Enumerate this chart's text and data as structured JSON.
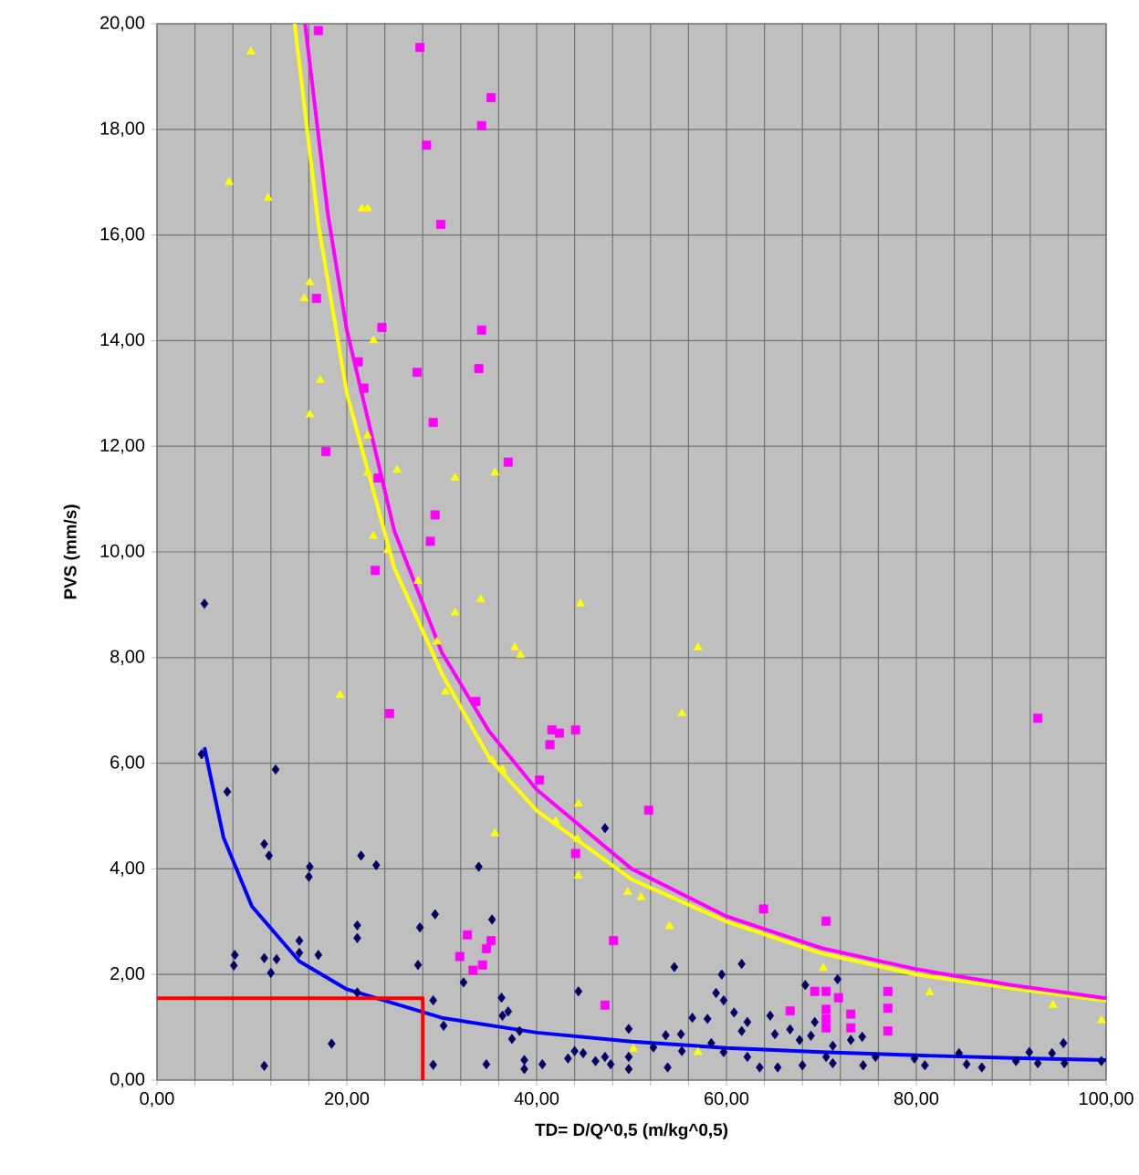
{
  "chart_data": {
    "type": "scatter",
    "xlabel": "TD= D/Q^0,5 (m/kg^0,5)",
    "ylabel": "PVS (mm/s)",
    "xlim": [
      0,
      100
    ],
    "ylim": [
      0,
      20
    ],
    "xticks": [
      {
        "value": 0,
        "label": "0,00"
      },
      {
        "value": 4,
        "label": null
      },
      {
        "value": 8,
        "label": null
      },
      {
        "value": 12,
        "label": null
      },
      {
        "value": 16,
        "label": null
      },
      {
        "value": 20,
        "label": "20,00"
      },
      {
        "value": 24,
        "label": null
      },
      {
        "value": 28,
        "label": null
      },
      {
        "value": 32,
        "label": null
      },
      {
        "value": 36,
        "label": null
      },
      {
        "value": 40,
        "label": "40,00"
      },
      {
        "value": 44,
        "label": null
      },
      {
        "value": 48,
        "label": null
      },
      {
        "value": 52,
        "label": null
      },
      {
        "value": 56,
        "label": null
      },
      {
        "value": 60,
        "label": "60,00"
      },
      {
        "value": 64,
        "label": null
      },
      {
        "value": 68,
        "label": null
      },
      {
        "value": 72,
        "label": null
      },
      {
        "value": 76,
        "label": null
      },
      {
        "value": 80,
        "label": "80,00"
      },
      {
        "value": 84,
        "label": null
      },
      {
        "value": 88,
        "label": null
      },
      {
        "value": 92,
        "label": null
      },
      {
        "value": 96,
        "label": null
      },
      {
        "value": 100,
        "label": "100,00"
      }
    ],
    "yticks": [
      {
        "value": 0,
        "label": "0,00"
      },
      {
        "value": 2,
        "label": "2,00"
      },
      {
        "value": 4,
        "label": "4,00"
      },
      {
        "value": 6,
        "label": "6,00"
      },
      {
        "value": 8,
        "label": "8,00"
      },
      {
        "value": 10,
        "label": "10,00"
      },
      {
        "value": 12,
        "label": "12,00"
      },
      {
        "value": 14,
        "label": "14,00"
      },
      {
        "value": 16,
        "label": "16,00"
      },
      {
        "value": 18,
        "label": "18,00"
      },
      {
        "value": 20,
        "label": "20,00"
      }
    ],
    "grid": true,
    "series": [
      {
        "marker": "diamond",
        "color": "#000066",
        "x": [
          5.0,
          4.7,
          12.5,
          7.4,
          11.3,
          11.8,
          16.1,
          16.0,
          21.5,
          23.1,
          21.1,
          21.1,
          27.7,
          29.3,
          15.0,
          15.0,
          17.0,
          8.2,
          8.1,
          11.3,
          12.6,
          12.0,
          27.5,
          32.3,
          21.1,
          29.1,
          30.2,
          18.4,
          11.3,
          29.1,
          33.9,
          47.2,
          35.3,
          54.5,
          61.6,
          59.5,
          44.4,
          36.3,
          37.0,
          36.4,
          37.4,
          38.2,
          34.7,
          38.7,
          38.7,
          40.6,
          43.3,
          44.0,
          44.9,
          46.2,
          47.2,
          47.8,
          49.7,
          49.7,
          49.7,
          52.3,
          53.6,
          53.8,
          55.2,
          55.3,
          56.4,
          58.0,
          58.9,
          59.7,
          58.4,
          59.7,
          60.8,
          61.6,
          62.2,
          62.2,
          63.5,
          64.6,
          65.1,
          68.3,
          71.7,
          66.7,
          67.7,
          68.9,
          69.3,
          71.2,
          70.5,
          71.2,
          73.1,
          74.3,
          74.4,
          65.4,
          68.0,
          75.7,
          79.8,
          80.9,
          84.5,
          85.3,
          86.9,
          90.5,
          91.9,
          92.8,
          94.3,
          95.5,
          95.6,
          99.5
        ],
        "values": [
          9.02,
          6.17,
          5.88,
          5.46,
          4.47,
          4.25,
          4.04,
          3.85,
          4.25,
          4.07,
          2.93,
          2.69,
          2.89,
          3.14,
          2.64,
          2.41,
          2.37,
          2.37,
          2.17,
          2.31,
          2.29,
          2.03,
          2.18,
          1.85,
          1.66,
          1.51,
          1.03,
          0.69,
          0.27,
          0.29,
          4.04,
          4.77,
          3.04,
          2.14,
          2.2,
          2.0,
          1.68,
          1.56,
          1.3,
          1.22,
          0.78,
          0.93,
          0.3,
          0.38,
          0.21,
          0.3,
          0.41,
          0.55,
          0.51,
          0.36,
          0.44,
          0.3,
          0.97,
          0.44,
          0.21,
          0.62,
          0.85,
          0.24,
          0.87,
          0.55,
          1.18,
          1.16,
          1.65,
          1.51,
          0.7,
          0.53,
          1.28,
          0.93,
          1.1,
          0.44,
          0.24,
          1.22,
          0.87,
          1.8,
          1.91,
          0.96,
          0.76,
          0.84,
          1.1,
          0.65,
          0.44,
          0.32,
          0.76,
          0.82,
          0.28,
          0.24,
          0.28,
          0.44,
          0.41,
          0.28,
          0.51,
          0.3,
          0.24,
          0.36,
          0.53,
          0.32,
          0.51,
          0.7,
          0.32,
          0.36
        ]
      },
      {
        "marker": "triangle",
        "color": "#ffff00",
        "x": [
          9.9,
          7.6,
          11.7,
          21.6,
          22.2,
          16.1,
          15.5,
          22.8,
          17.2,
          16.1,
          22.2,
          22.2,
          25.3,
          31.4,
          35.6,
          22.8,
          24.3,
          31.4,
          19.3,
          27.5,
          29.5,
          30.4,
          34.1,
          44.6,
          37.7,
          38.3,
          57.0,
          55.3,
          35.3,
          36.4,
          44.4,
          35.6,
          42.0,
          44.3,
          44.4,
          49.6,
          51.0,
          54.0,
          50.2,
          57.0,
          70.2,
          81.4,
          94.4,
          99.5
        ],
        "values": [
          19.47,
          17.0,
          16.7,
          16.5,
          16.5,
          15.1,
          14.8,
          14.0,
          13.25,
          12.6,
          12.2,
          11.5,
          11.55,
          11.4,
          11.5,
          10.3,
          10.03,
          8.85,
          7.29,
          9.45,
          8.3,
          7.35,
          9.1,
          9.02,
          8.19,
          8.05,
          8.19,
          6.94,
          6.06,
          5.88,
          5.23,
          4.67,
          4.9,
          4.56,
          3.87,
          3.56,
          3.46,
          2.91,
          0.59,
          0.53,
          2.12,
          1.66,
          1.42,
          1.13
        ]
      },
      {
        "marker": "square",
        "color": "#ff00ff",
        "x": [
          17.0,
          27.7,
          28.4,
          29.9,
          35.2,
          34.2,
          34.2,
          33.9,
          37.0,
          16.8,
          23.7,
          21.2,
          27.4,
          21.8,
          29.1,
          17.8,
          23.3,
          29.3,
          28.8,
          23.0,
          24.5,
          32.7,
          31.9,
          33.6,
          41.6,
          42.4,
          41.4,
          44.1,
          40.3,
          51.8,
          44.1,
          63.9,
          35.2,
          34.7,
          34.3,
          33.3,
          48.1,
          47.2,
          92.8,
          70.5,
          66.7,
          69.3,
          70.5,
          71.8,
          70.5,
          70.5,
          70.5,
          73.1,
          73.1,
          77.0,
          77.0,
          77.0
        ],
        "values": [
          19.87,
          19.55,
          17.7,
          16.2,
          18.6,
          18.07,
          14.2,
          13.47,
          11.7,
          14.8,
          14.25,
          13.6,
          13.4,
          13.1,
          12.45,
          11.9,
          11.4,
          10.7,
          10.2,
          9.65,
          6.94,
          2.75,
          2.34,
          7.17,
          6.63,
          6.57,
          6.35,
          6.63,
          5.68,
          5.11,
          4.29,
          3.24,
          2.64,
          2.49,
          2.18,
          2.08,
          2.64,
          1.42,
          6.85,
          3.01,
          1.31,
          1.68,
          1.68,
          1.56,
          1.34,
          1.16,
          0.99,
          1.25,
          0.99,
          1.68,
          1.36,
          0.93
        ]
      },
      {
        "type": "line",
        "marker": "none",
        "color": "#0000ff",
        "x": [
          5,
          7,
          10,
          15,
          20,
          30,
          40,
          50,
          60,
          70,
          80,
          90,
          100
        ],
        "values": [
          6.3,
          4.6,
          3.29,
          2.25,
          1.72,
          1.18,
          0.9,
          0.73,
          0.61,
          0.53,
          0.47,
          0.42,
          0.38
        ]
      },
      {
        "type": "line",
        "marker": "none",
        "color": "#ffff00",
        "x": [
          14.5,
          17,
          20,
          25,
          30,
          35,
          40,
          50,
          60,
          70,
          80,
          90,
          100
        ],
        "values": [
          20,
          16.2,
          13.0,
          9.7,
          7.7,
          6.1,
          5.1,
          3.8,
          3.0,
          2.4,
          2.0,
          1.74,
          1.5
        ]
      },
      {
        "type": "line",
        "marker": "none",
        "color": "#ff00ff",
        "x": [
          15.6,
          18,
          20,
          25,
          30,
          35,
          40,
          50,
          60,
          70,
          80,
          90,
          100
        ],
        "values": [
          20,
          16.4,
          14.2,
          10.4,
          8.1,
          6.6,
          5.5,
          4.0,
          3.1,
          2.5,
          2.1,
          1.8,
          1.55
        ]
      },
      {
        "type": "line",
        "marker": "none",
        "color": "#ff0000",
        "x": [
          0,
          28,
          28
        ],
        "values": [
          1.55,
          1.55,
          0
        ]
      }
    ]
  }
}
